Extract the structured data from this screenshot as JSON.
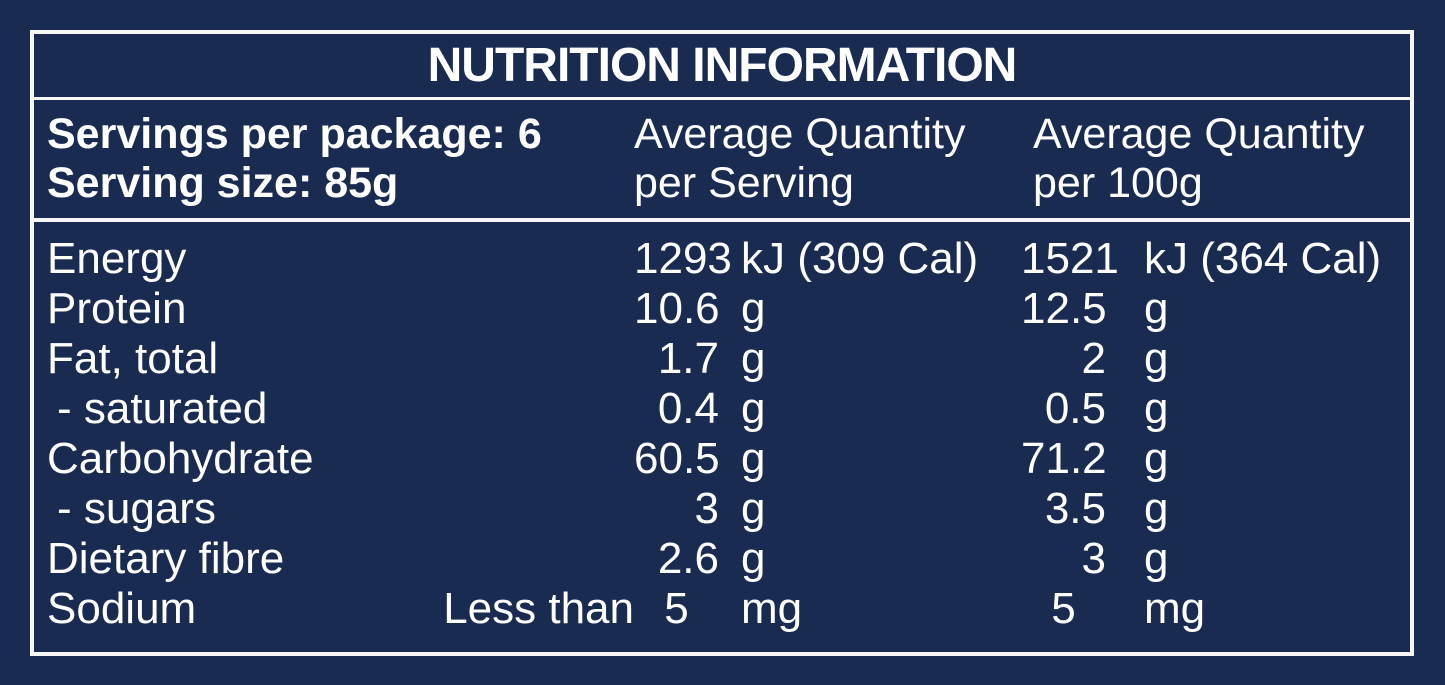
{
  "colors": {
    "background": "#1a2b52",
    "text": "#ffffff",
    "rule_lines": "#f7f7f7"
  },
  "title": "NUTRITION INFORMATION",
  "serving_info": {
    "servings_per_package": "Servings per package: 6",
    "serving_size": "Serving size: 85g"
  },
  "column_headers": {
    "per_serving": {
      "line1": "Average Quantity",
      "line2": "per Serving"
    },
    "per_100g": {
      "line1": "Average Quantity",
      "line2": "per 100g"
    }
  },
  "nutrients": [
    {
      "name": "Energy",
      "qualifier": "",
      "per_serving_value": "1293",
      "per_serving_unit": "kJ (309 Cal)",
      "per_100g_value": "1521",
      "per_100g_unit": "kJ (364 Cal)"
    },
    {
      "name": "Protein",
      "qualifier": "",
      "per_serving_value": "10.6",
      "per_serving_unit": "g",
      "per_100g_value": "12.5",
      "per_100g_unit": "g"
    },
    {
      "name": "Fat, total",
      "qualifier": "",
      "per_serving_value": "1.7",
      "per_serving_unit": "g",
      "per_100g_value": "2",
      "per_100g_unit": "g"
    },
    {
      "name": "- saturated",
      "qualifier": "",
      "per_serving_value": "0.4",
      "per_serving_unit": "g",
      "per_100g_value": "0.5",
      "per_100g_unit": "g"
    },
    {
      "name": "Carbohydrate",
      "qualifier": "",
      "per_serving_value": "60.5",
      "per_serving_unit": "g",
      "per_100g_value": "71.2",
      "per_100g_unit": "g"
    },
    {
      "name": "- sugars",
      "qualifier": "",
      "per_serving_value": "3",
      "per_serving_unit": "g",
      "per_100g_value": "3.5",
      "per_100g_unit": "g"
    },
    {
      "name": "Dietary fibre",
      "qualifier": "",
      "per_serving_value": "2.6",
      "per_serving_unit": "g",
      "per_100g_value": "3",
      "per_100g_unit": "g"
    },
    {
      "name": "Sodium",
      "qualifier": "Less than",
      "per_serving_value": "5",
      "per_serving_unit": "mg",
      "per_100g_value": "5",
      "per_100g_unit": "mg"
    }
  ]
}
